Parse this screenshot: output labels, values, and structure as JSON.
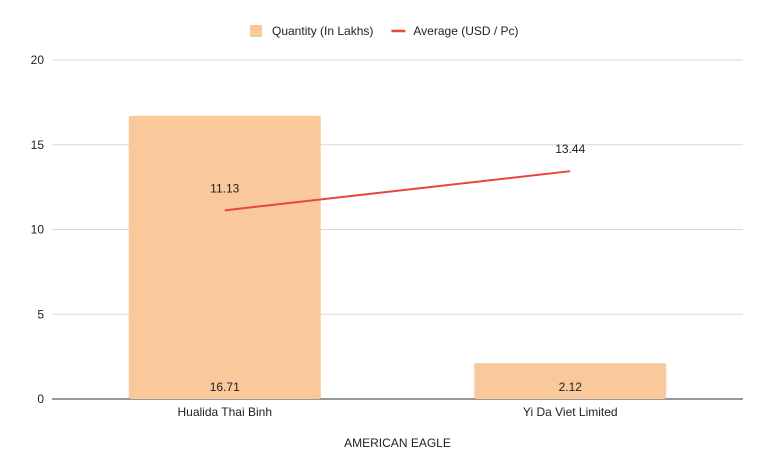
{
  "chart_data": {
    "type": "bar",
    "categories": [
      "Hualida Thai Binh",
      "Yi Da Viet Limited"
    ],
    "series": [
      {
        "name": "Quantity (In Lakhs)",
        "kind": "bar",
        "color": "#f9c89b",
        "values": [
          16.71,
          2.12
        ],
        "labels": [
          "16.71",
          "2.12"
        ],
        "label_position": "base"
      },
      {
        "name": "Average (USD / Pc)",
        "kind": "line",
        "color": "#e8453c",
        "values": [
          11.13,
          13.44
        ],
        "labels": [
          "11.13",
          "13.44"
        ],
        "label_position": "above"
      }
    ],
    "xlabel": "AMERICAN EAGLE",
    "ylabel": "",
    "ylim": [
      0,
      20
    ],
    "yticks": [
      "0",
      "5",
      "10",
      "15",
      "20"
    ],
    "grid": true,
    "legend_position": "top"
  }
}
